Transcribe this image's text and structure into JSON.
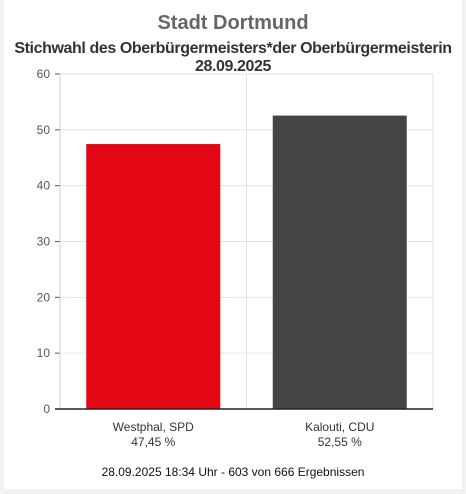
{
  "header": {
    "title": "Stadt Dortmund",
    "subtitle": "Stichwahl des Oberbürgermeisters*der Oberbürgermeisterin 28.09.2025"
  },
  "chart_data": {
    "type": "bar",
    "categories": [
      "Westphal, SPD",
      "Kalouti, CDU"
    ],
    "values": [
      47.45,
      52.55
    ],
    "value_labels": [
      "47,45 %",
      "52,55 %"
    ],
    "colors": [
      "#e30613",
      "#444444"
    ],
    "ylim": [
      0,
      60
    ],
    "yticks": [
      0,
      10,
      20,
      30,
      40,
      50,
      60
    ],
    "grid": true
  },
  "footer": {
    "status": "28.09.2025 18:34 Uhr - 603 von 666 Ergebnissen"
  }
}
